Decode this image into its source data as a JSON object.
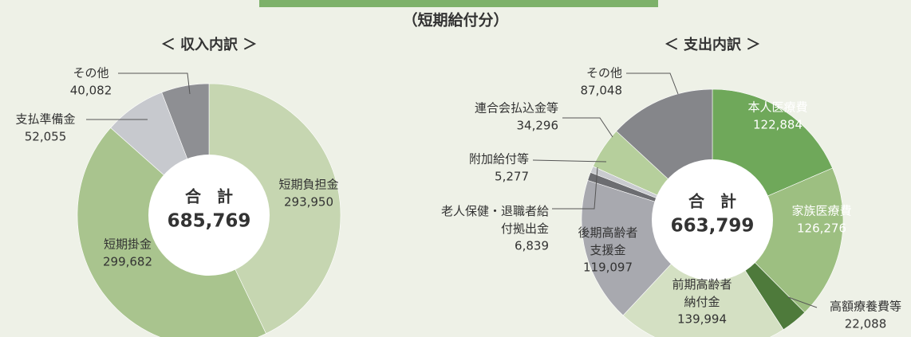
{
  "subtitle": "（短期給付分）",
  "chart_data": [
    {
      "type": "pie",
      "title": "＜ 収入内訳 ＞",
      "categories": [
        "短期負担金",
        "短期掛金",
        "支払準備金",
        "その他"
      ],
      "values": [
        293950,
        299682,
        52055,
        40082
      ],
      "value_labels": [
        "293,950",
        "299,682",
        "52,055",
        "40,082"
      ],
      "colors": [
        "#c6d6b1",
        "#a9c48e",
        "#c7c9ce",
        "#8e8f93"
      ],
      "center_label": "合　計",
      "total": {
        "value": 685769,
        "label": "685,769"
      }
    },
    {
      "type": "pie",
      "title": "＜ 支出内訳 ＞",
      "categories": [
        "本人医療費",
        "家族医療費",
        "高額療養費等",
        "前期高齢者\n納付金",
        "後期高齢者\n支援金",
        "老人保健・退職者給\n付拠出金",
        "附加給付等",
        "連合会払込金等",
        "その他"
      ],
      "values": [
        122884,
        126276,
        22088,
        139994,
        119097,
        6839,
        5277,
        34296,
        87048
      ],
      "value_labels": [
        "122,884",
        "126,276",
        "22,088",
        "139,994",
        "119,097",
        "6,839",
        "5,277",
        "34,296",
        "87,048"
      ],
      "colors": [
        "#6fa85a",
        "#9dbf81",
        "#4e7a3b",
        "#d4e0c3",
        "#a8a9af",
        "#6c6d71",
        "#c9cbcf",
        "#b6cf9c",
        "#85868a"
      ],
      "center_label": "合　計",
      "total": {
        "value": 663799,
        "label": "663,799"
      }
    }
  ]
}
